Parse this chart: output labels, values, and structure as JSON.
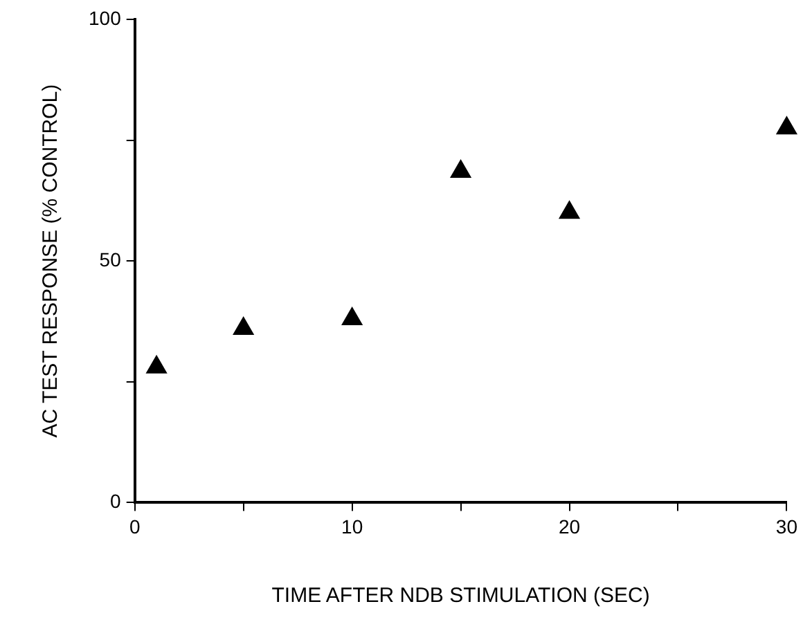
{
  "chart_data": {
    "type": "scatter",
    "xlabel": "TIME AFTER NDB STIMULATION (SEC)",
    "ylabel": "AC TEST RESPONSE (% CONTROL)",
    "x": [
      1,
      5,
      10,
      15,
      20,
      30
    ],
    "series": [
      {
        "color": "#000000",
        "values": [
          28,
          36,
          38,
          68.5,
          60,
          77.5
        ]
      }
    ],
    "xlim": [
      0,
      30
    ],
    "xticks": [
      0,
      {
        "value": 5,
        "label": null
      },
      10,
      {
        "value": 15,
        "label": null
      },
      20,
      {
        "value": 25,
        "label": null
      },
      30
    ],
    "ylim": [
      0,
      100
    ],
    "yticks": [
      0,
      {
        "value": 25,
        "label": null
      },
      50,
      {
        "value": 75,
        "label": null
      },
      100
    ],
    "grid": false,
    "legend": false,
    "marker": "triangle"
  }
}
